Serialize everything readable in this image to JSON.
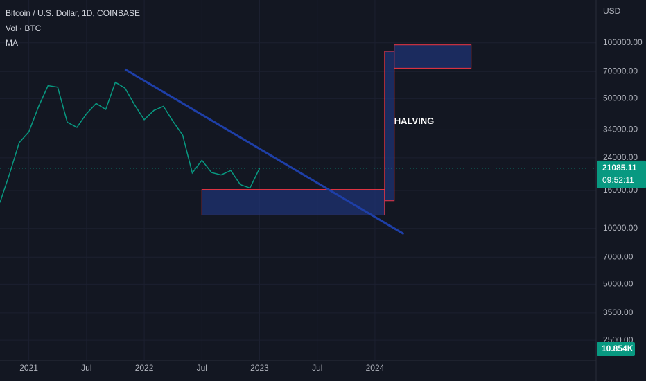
{
  "chart_data": {
    "type": "line",
    "title": "Bitcoin / U.S. Dollar, 1D, COINBASE",
    "subtitle": "Vol · BTC",
    "indicator": "MA",
    "currency": "USD",
    "log_scale": true,
    "x": [
      "2020-10",
      "2020-11",
      "2020-12",
      "2021-01",
      "2021-02",
      "2021-03",
      "2021-04",
      "2021-05",
      "2021-06",
      "2021-07",
      "2021-08",
      "2021-09",
      "2021-10",
      "2021-11",
      "2021-12",
      "2022-01",
      "2022-02",
      "2022-03",
      "2022-04",
      "2022-05",
      "2022-06",
      "2022-07",
      "2022-08",
      "2022-09",
      "2022-10",
      "2022-11",
      "2022-12",
      "2023-01"
    ],
    "series": [
      {
        "color": "#089981",
        "values": [
          13800,
          19700,
          29000,
          33100,
          45200,
          58800,
          57700,
          37300,
          35000,
          41500,
          47100,
          43800,
          61300,
          57000,
          46300,
          38500,
          43200,
          45500,
          37700,
          31800,
          19900,
          23300,
          20000,
          19400,
          20500,
          17200,
          16500,
          21085.11
        ]
      }
    ],
    "xlim": [
      "2020-10",
      "2025-12"
    ],
    "xticks": [
      {
        "value": "2021-01",
        "label": "2021"
      },
      {
        "value": "2021-07",
        "label": "Jul"
      },
      {
        "value": "2022-01",
        "label": "2022"
      },
      {
        "value": "2022-07",
        "label": "Jul"
      },
      {
        "value": "2023-01",
        "label": "2023"
      },
      {
        "value": "2023-07",
        "label": "Jul"
      },
      {
        "value": "2024-01",
        "label": "2024"
      }
    ],
    "ylim": [
      1950,
      170000
    ],
    "yticks": [
      {
        "value": 100000,
        "label": "100000.00"
      },
      {
        "value": 70000,
        "label": "70000.00"
      },
      {
        "value": 50000,
        "label": "50000.00"
      },
      {
        "value": 34000,
        "label": "34000.00"
      },
      {
        "value": 24000,
        "label": "24000.00"
      },
      {
        "value": 16000,
        "label": "16000.00"
      },
      {
        "value": 10000,
        "label": "10000.00"
      },
      {
        "value": 7000,
        "label": "7000.00"
      },
      {
        "value": 5000,
        "label": "5000.00"
      },
      {
        "value": 3500,
        "label": "3500.00"
      },
      {
        "value": 2500,
        "label": "2500.00"
      }
    ],
    "last_price": 21085.11,
    "countdown": "09:52:11",
    "volume_label": "10.854K",
    "trendline": {
      "color": "#1e3fa8",
      "x": [
        "2021-11",
        "2024-04"
      ],
      "y": [
        72000,
        9330
      ]
    },
    "boxes": [
      {
        "x": [
          "2022-07",
          "2024-02"
        ],
        "y": [
          11800,
          16200
        ]
      },
      {
        "x": [
          "2024-02",
          "2024-03"
        ],
        "y": [
          14100,
          90000
        ]
      },
      {
        "x": [
          "2024-03",
          "2024-11"
        ],
        "y": [
          73000,
          97500
        ]
      }
    ],
    "annotations": [
      {
        "text": "HALVING",
        "x": "2024-03",
        "y": 37600
      }
    ]
  }
}
